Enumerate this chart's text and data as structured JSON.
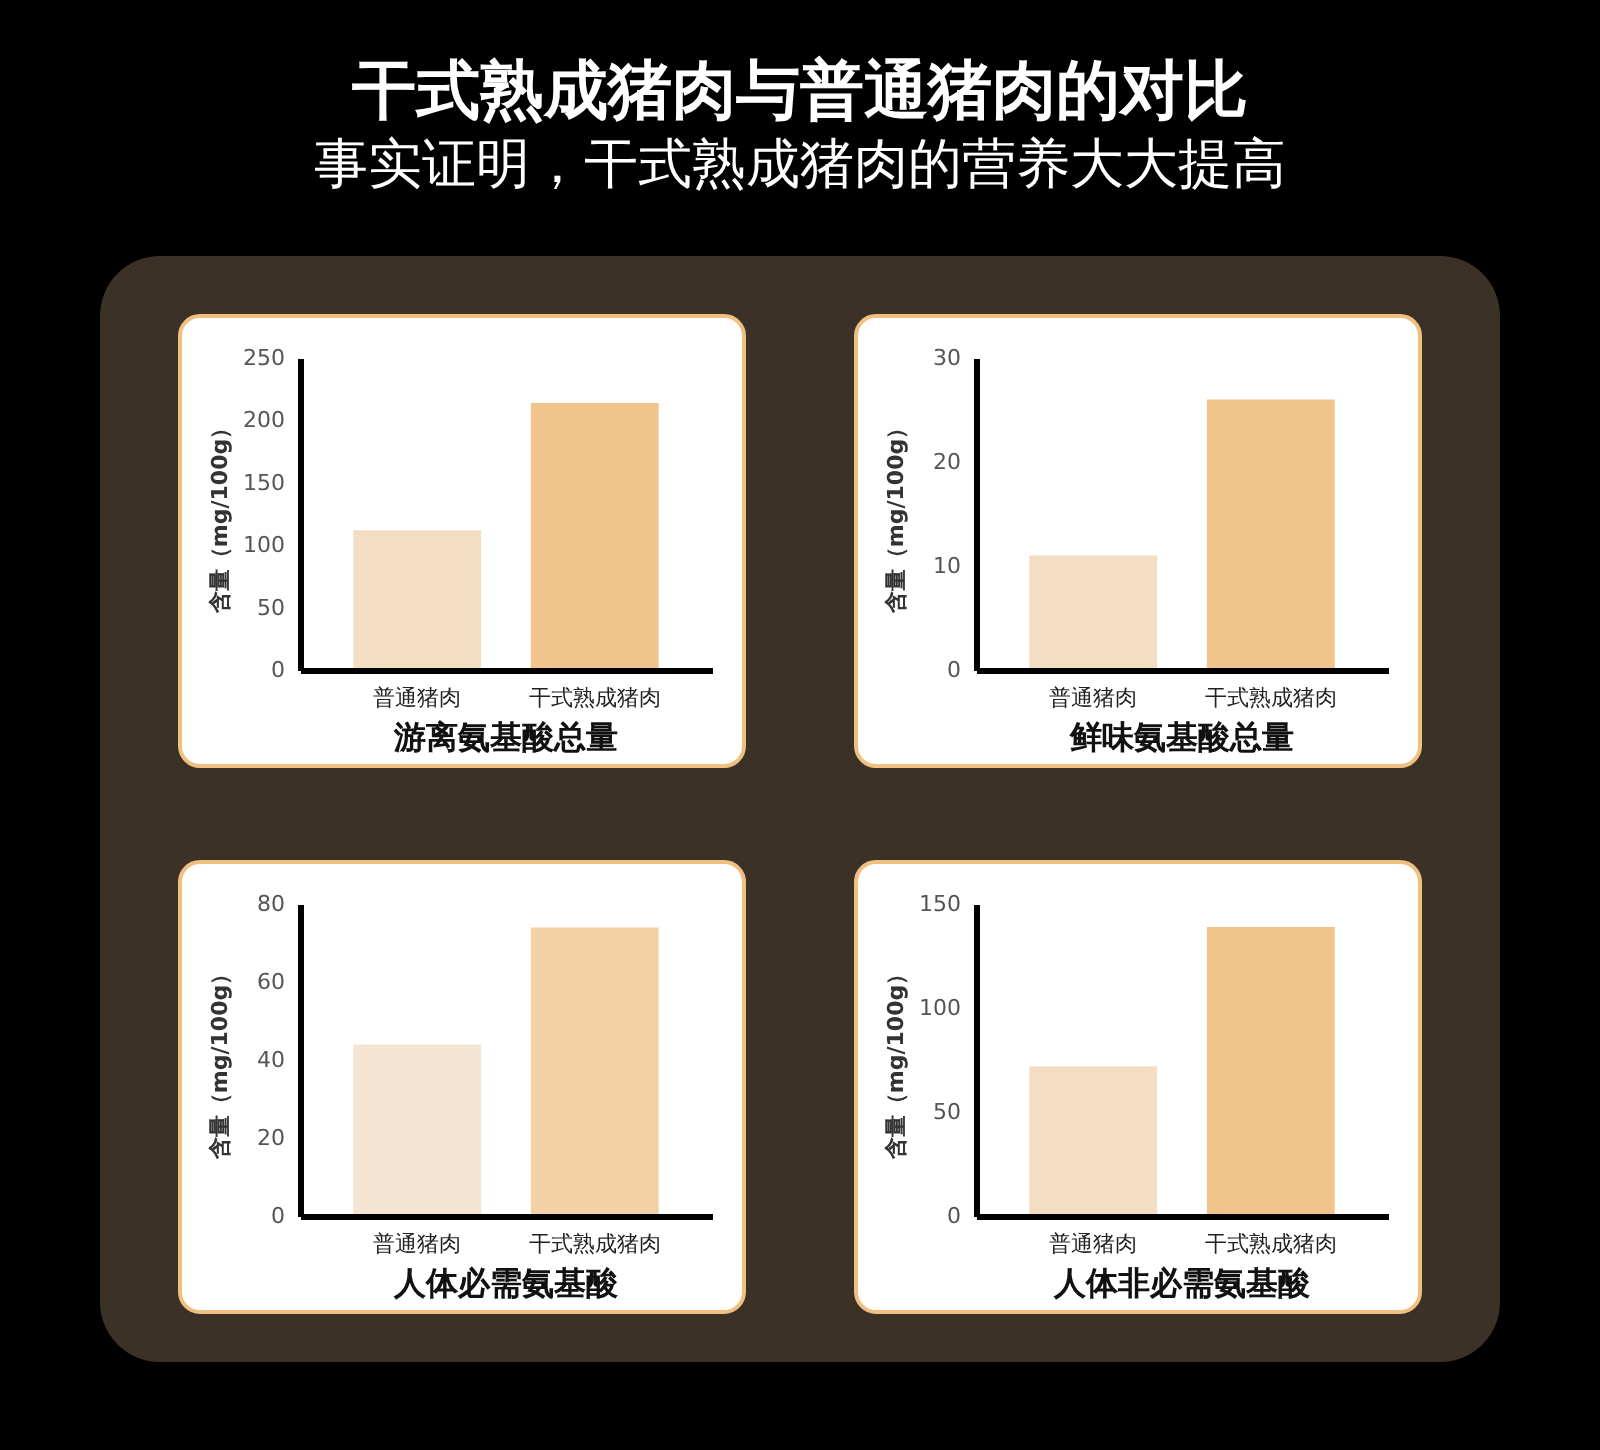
{
  "chart_data": [
    {
      "type": "other",
      "title": "干式熟成猪肉与普通猪肉的对比",
      "subtitle": "事实证明，干式熟成猪肉的营养大大提高"
    },
    {
      "type": "bar",
      "title": "游离氨基酸总量",
      "ylabel": "含量（mg/100g）",
      "categories": [
        "普通猪肉",
        "干式熟成猪肉"
      ],
      "values": [
        112,
        214
      ],
      "colors": [
        "#f4dec3",
        "#f1c48e"
      ],
      "ylim": [
        0,
        250
      ],
      "yticks": [
        0,
        50,
        100,
        150,
        200,
        250
      ]
    },
    {
      "type": "bar",
      "title": "鲜味氨基酸总量",
      "ylabel": "含量（mg/100g）",
      "categories": [
        "普通猪肉",
        "干式熟成猪肉"
      ],
      "values": [
        11,
        26
      ],
      "colors": [
        "#f4dec3",
        "#f1c48e"
      ],
      "ylim": [
        0,
        30
      ],
      "yticks": [
        0,
        10,
        20,
        30
      ]
    },
    {
      "type": "bar",
      "title": "人体必需氨基酸",
      "ylabel": "含量（mg/100g）",
      "categories": [
        "普通猪肉",
        "干式熟成猪肉"
      ],
      "values": [
        44,
        74
      ],
      "colors": [
        "#f5e4d1",
        "#f2d1a5"
      ],
      "ylim": [
        0,
        80
      ],
      "yticks": [
        0,
        20,
        40,
        60,
        80
      ]
    },
    {
      "type": "bar",
      "title": "人体非必需氨基酸",
      "ylabel": "含量（mg/100g）",
      "categories": [
        "普通猪肉",
        "干式熟成猪肉"
      ],
      "values": [
        72,
        139
      ],
      "colors": [
        "#f4dec3",
        "#f1c48e"
      ],
      "ylim": [
        0,
        150
      ],
      "yticks": [
        0,
        50,
        100,
        150
      ]
    }
  ]
}
